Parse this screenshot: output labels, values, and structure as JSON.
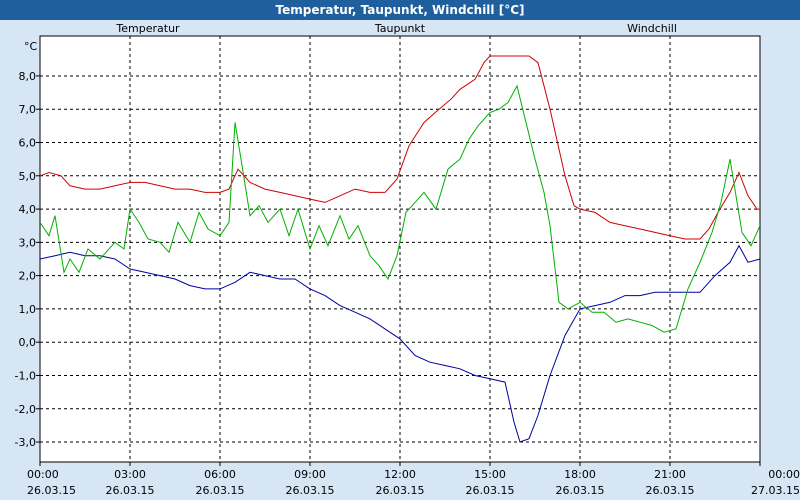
{
  "chart_data": {
    "type": "line",
    "title": "Temperatur, Taupunkt, Windchill [°C]",
    "ylabel": "°C",
    "ylim": [
      -3.6,
      9.2
    ],
    "xlim_hours": [
      0,
      24
    ],
    "grid": true,
    "y_ticks": [
      8,
      7,
      6,
      5,
      4,
      3,
      2,
      1,
      0,
      -1,
      -2,
      -3
    ],
    "y_tick_labels": [
      "8,0",
      "7,0",
      "6,0",
      "5,0",
      "4,0",
      "3,0",
      "2,0",
      "1,0",
      "0,0",
      "-1,0",
      "-2,0",
      "-3,0"
    ],
    "x_ticks": [
      {
        "h": 0,
        "time": "00:00",
        "date": "26.03.15"
      },
      {
        "h": 3,
        "time": "03:00",
        "date": "26.03.15"
      },
      {
        "h": 6,
        "time": "06:00",
        "date": "26.03.15"
      },
      {
        "h": 9,
        "time": "09:00",
        "date": "26.03.15"
      },
      {
        "h": 12,
        "time": "12:00",
        "date": "26.03.15"
      },
      {
        "h": 15,
        "time": "15:00",
        "date": "26.03.15"
      },
      {
        "h": 18,
        "time": "18:00",
        "date": "26.03.15"
      },
      {
        "h": 21,
        "time": "21:00",
        "date": "26.03.15"
      },
      {
        "h": 24,
        "time": "00:00",
        "date": "27.03.15"
      }
    ],
    "series": [
      {
        "name": "Temperatur",
        "color": "#d00000",
        "legend_pos": "left",
        "points": [
          [
            0,
            5.0
          ],
          [
            0.3,
            5.1
          ],
          [
            0.7,
            5.0
          ],
          [
            1.0,
            4.7
          ],
          [
            1.5,
            4.6
          ],
          [
            2.0,
            4.6
          ],
          [
            2.5,
            4.7
          ],
          [
            3.0,
            4.8
          ],
          [
            3.5,
            4.8
          ],
          [
            4.0,
            4.7
          ],
          [
            4.5,
            4.6
          ],
          [
            5.0,
            4.6
          ],
          [
            5.5,
            4.5
          ],
          [
            6.0,
            4.5
          ],
          [
            6.3,
            4.6
          ],
          [
            6.6,
            5.2
          ],
          [
            7.0,
            4.8
          ],
          [
            7.5,
            4.6
          ],
          [
            8.0,
            4.5
          ],
          [
            8.5,
            4.4
          ],
          [
            9.0,
            4.3
          ],
          [
            9.5,
            4.2
          ],
          [
            10.0,
            4.4
          ],
          [
            10.5,
            4.6
          ],
          [
            11.0,
            4.5
          ],
          [
            11.5,
            4.5
          ],
          [
            11.9,
            4.9
          ],
          [
            12.3,
            5.9
          ],
          [
            12.8,
            6.6
          ],
          [
            13.3,
            7.0
          ],
          [
            13.7,
            7.3
          ],
          [
            14.0,
            7.6
          ],
          [
            14.5,
            7.9
          ],
          [
            14.8,
            8.4
          ],
          [
            15.0,
            8.6
          ],
          [
            15.3,
            8.6
          ],
          [
            15.6,
            8.6
          ],
          [
            16.0,
            8.6
          ],
          [
            16.3,
            8.6
          ],
          [
            16.6,
            8.4
          ],
          [
            17.0,
            7.0
          ],
          [
            17.5,
            5.0
          ],
          [
            17.8,
            4.1
          ],
          [
            18.0,
            4.0
          ],
          [
            18.5,
            3.9
          ],
          [
            19.0,
            3.6
          ],
          [
            19.5,
            3.5
          ],
          [
            20.0,
            3.4
          ],
          [
            20.5,
            3.3
          ],
          [
            21.0,
            3.2
          ],
          [
            21.5,
            3.1
          ],
          [
            22.0,
            3.1
          ],
          [
            22.3,
            3.4
          ],
          [
            22.6,
            3.9
          ],
          [
            23.0,
            4.5
          ],
          [
            23.3,
            5.1
          ],
          [
            23.6,
            4.4
          ],
          [
            23.9,
            4.0
          ],
          [
            24.0,
            4.0
          ]
        ]
      },
      {
        "name": "Taupunkt",
        "color": "#0000a0",
        "legend_pos": "center",
        "points": [
          [
            0,
            2.5
          ],
          [
            0.5,
            2.6
          ],
          [
            1.0,
            2.7
          ],
          [
            1.5,
            2.6
          ],
          [
            2.0,
            2.6
          ],
          [
            2.5,
            2.5
          ],
          [
            3.0,
            2.2
          ],
          [
            3.5,
            2.1
          ],
          [
            4.0,
            2.0
          ],
          [
            4.5,
            1.9
          ],
          [
            5.0,
            1.7
          ],
          [
            5.5,
            1.6
          ],
          [
            6.0,
            1.6
          ],
          [
            6.5,
            1.8
          ],
          [
            7.0,
            2.1
          ],
          [
            7.5,
            2.0
          ],
          [
            8.0,
            1.9
          ],
          [
            8.5,
            1.9
          ],
          [
            9.0,
            1.6
          ],
          [
            9.5,
            1.4
          ],
          [
            10.0,
            1.1
          ],
          [
            10.5,
            0.9
          ],
          [
            11.0,
            0.7
          ],
          [
            11.5,
            0.4
          ],
          [
            12.0,
            0.1
          ],
          [
            12.5,
            -0.4
          ],
          [
            13.0,
            -0.6
          ],
          [
            13.5,
            -0.7
          ],
          [
            14.0,
            -0.8
          ],
          [
            14.5,
            -1.0
          ],
          [
            15.0,
            -1.1
          ],
          [
            15.5,
            -1.2
          ],
          [
            15.8,
            -2.4
          ],
          [
            16.0,
            -3.0
          ],
          [
            16.3,
            -2.9
          ],
          [
            16.6,
            -2.2
          ],
          [
            17.0,
            -1.0
          ],
          [
            17.5,
            0.2
          ],
          [
            18.0,
            1.0
          ],
          [
            18.5,
            1.1
          ],
          [
            19.0,
            1.2
          ],
          [
            19.5,
            1.4
          ],
          [
            20.0,
            1.4
          ],
          [
            20.5,
            1.5
          ],
          [
            21.0,
            1.5
          ],
          [
            21.5,
            1.5
          ],
          [
            22.0,
            1.5
          ],
          [
            22.5,
            2.0
          ],
          [
            23.0,
            2.4
          ],
          [
            23.3,
            2.9
          ],
          [
            23.6,
            2.4
          ],
          [
            24.0,
            2.5
          ]
        ]
      },
      {
        "name": "Windchill",
        "color": "#00b000",
        "legend_pos": "right",
        "points": [
          [
            0,
            3.6
          ],
          [
            0.3,
            3.2
          ],
          [
            0.5,
            3.8
          ],
          [
            0.8,
            2.1
          ],
          [
            1.0,
            2.5
          ],
          [
            1.3,
            2.1
          ],
          [
            1.6,
            2.8
          ],
          [
            2.0,
            2.5
          ],
          [
            2.5,
            3.0
          ],
          [
            2.8,
            2.8
          ],
          [
            3.0,
            4.0
          ],
          [
            3.3,
            3.6
          ],
          [
            3.6,
            3.1
          ],
          [
            4.0,
            3.0
          ],
          [
            4.3,
            2.7
          ],
          [
            4.6,
            3.6
          ],
          [
            5.0,
            3.0
          ],
          [
            5.3,
            3.9
          ],
          [
            5.6,
            3.4
          ],
          [
            6.0,
            3.2
          ],
          [
            6.3,
            3.6
          ],
          [
            6.5,
            6.6
          ],
          [
            6.7,
            5.5
          ],
          [
            7.0,
            3.8
          ],
          [
            7.3,
            4.1
          ],
          [
            7.6,
            3.6
          ],
          [
            8.0,
            4.0
          ],
          [
            8.3,
            3.2
          ],
          [
            8.6,
            4.0
          ],
          [
            9.0,
            2.8
          ],
          [
            9.3,
            3.5
          ],
          [
            9.6,
            2.9
          ],
          [
            10.0,
            3.8
          ],
          [
            10.3,
            3.1
          ],
          [
            10.6,
            3.5
          ],
          [
            11.0,
            2.6
          ],
          [
            11.3,
            2.3
          ],
          [
            11.6,
            1.9
          ],
          [
            11.9,
            2.6
          ],
          [
            12.2,
            3.9
          ],
          [
            12.5,
            4.2
          ],
          [
            12.8,
            4.5
          ],
          [
            13.2,
            4.0
          ],
          [
            13.6,
            5.2
          ],
          [
            14.0,
            5.5
          ],
          [
            14.3,
            6.1
          ],
          [
            14.6,
            6.5
          ],
          [
            15.0,
            6.9
          ],
          [
            15.3,
            7.0
          ],
          [
            15.6,
            7.2
          ],
          [
            15.9,
            7.7
          ],
          [
            16.2,
            6.6
          ],
          [
            16.5,
            5.5
          ],
          [
            16.8,
            4.5
          ],
          [
            17.0,
            3.5
          ],
          [
            17.3,
            1.2
          ],
          [
            17.6,
            1.0
          ],
          [
            18.0,
            1.2
          ],
          [
            18.4,
            0.9
          ],
          [
            18.8,
            0.9
          ],
          [
            19.2,
            0.6
          ],
          [
            19.6,
            0.7
          ],
          [
            20.0,
            0.6
          ],
          [
            20.4,
            0.5
          ],
          [
            20.8,
            0.3
          ],
          [
            21.2,
            0.4
          ],
          [
            21.6,
            1.6
          ],
          [
            22.0,
            2.4
          ],
          [
            22.4,
            3.3
          ],
          [
            22.7,
            4.2
          ],
          [
            23.0,
            5.5
          ],
          [
            23.2,
            4.4
          ],
          [
            23.4,
            3.3
          ],
          [
            23.7,
            2.9
          ],
          [
            24.0,
            3.5
          ]
        ]
      }
    ]
  }
}
